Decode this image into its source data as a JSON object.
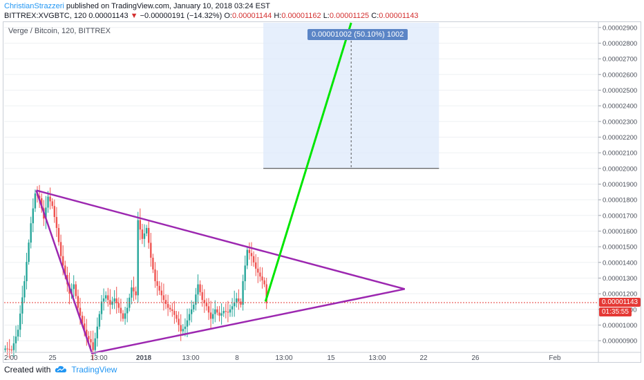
{
  "header": {
    "author": "ChristianStrazzeri",
    "published_text": " published on TradingView.com, January 10, 2018 03:24 EST",
    "symbol_interval": "BITTREX:XVGBTC, 120",
    "last_price": "0.00001143",
    "change_icon": "down-triangle-icon",
    "change": "−0.00000191 (−14.32%)",
    "open_label": "O:",
    "open": "0.00001144",
    "high_label": "H:",
    "high": "0.00001162",
    "low_label": "L:",
    "low": "0.00001125",
    "close_label": "C:",
    "close": "0.00001143"
  },
  "legend_title": "Verge / Bitcoin, 120, BITTREX",
  "measure_label": "0.00001002 (50.10%) 1002",
  "price_tags": {
    "current": "0.00001143",
    "countdown": "01:35:55"
  },
  "footer": {
    "created_with": "Created with",
    "brand": "TradingView",
    "logo_icon": "tradingview-cloud-icon"
  },
  "colors": {
    "up": "#26a69a",
    "down": "#ef5350",
    "triangle": "#9c27b0",
    "projection": "#00e600",
    "measure_box": "#ddeafb",
    "price_tag": "#e53935",
    "header_author": "#2196f3"
  },
  "chart_data": {
    "type": "candlestick",
    "title": "Verge / Bitcoin, 120, BITTREX",
    "x_tick_labels": [
      "2:00",
      "25",
      "13:00",
      "2018",
      "13:00",
      "8",
      "13:00",
      "15",
      "13:00",
      "22",
      "26",
      "Feb"
    ],
    "y_tick_labels": [
      "0.00000900",
      "0.00001000",
      "0.00001100",
      "0.00001200",
      "0.00001300",
      "0.00001400",
      "0.00001500",
      "0.00001600",
      "0.00001700",
      "0.00001800",
      "0.00001900",
      "0.00002000",
      "0.00002100",
      "0.00002200",
      "0.00002300",
      "0.00002400",
      "0.00002500",
      "0.00002600",
      "0.00002700",
      "0.00002800",
      "0.00002900"
    ],
    "ylim": [
      8.3e-06,
      2.93e-05
    ],
    "last_close": 1.143e-05,
    "price_path": [
      [
        0,
        8.5e-06
      ],
      [
        3,
        8.4e-06
      ],
      [
        6,
        9.7e-06
      ],
      [
        9,
        1.28e-05
      ],
      [
        12,
        1.65e-05
      ],
      [
        14,
        1.84e-05
      ],
      [
        16,
        1.81e-05
      ],
      [
        18,
        1.68e-05
      ],
      [
        20,
        1.82e-05
      ],
      [
        22,
        1.76e-05
      ],
      [
        24,
        1.62e-05
      ],
      [
        26,
        1.44e-05
      ],
      [
        28,
        1.32e-05
      ],
      [
        30,
        1.2e-05
      ],
      [
        32,
        1.26e-05
      ],
      [
        34,
        1.11e-05
      ],
      [
        36,
        1.01e-05
      ],
      [
        38,
        9.3e-06
      ],
      [
        40,
        8.9e-06
      ],
      [
        41,
        8.4e-06
      ],
      [
        43,
        9.9e-06
      ],
      [
        45,
        1.15e-05
      ],
      [
        47,
        1.19e-05
      ],
      [
        49,
        1.13e-05
      ],
      [
        51,
        1.17e-05
      ],
      [
        53,
        1.11e-05
      ],
      [
        55,
        1.04e-05
      ],
      [
        57,
        1.11e-05
      ],
      [
        59,
        1.24e-05
      ],
      [
        61,
        1.19e-05
      ],
      [
        62,
        1.67e-05
      ],
      [
        64,
        1.55e-05
      ],
      [
        66,
        1.62e-05
      ],
      [
        68,
        1.43e-05
      ],
      [
        70,
        1.28e-05
      ],
      [
        72,
        1.22e-05
      ],
      [
        74,
        1.16e-05
      ],
      [
        76,
        1.11e-05
      ],
      [
        78,
        1.09e-05
      ],
      [
        80,
        1.04e-05
      ],
      [
        82,
        9.6e-06
      ],
      [
        84,
        9.9e-06
      ],
      [
        86,
        1.07e-05
      ],
      [
        88,
        1.13e-05
      ],
      [
        90,
        1.26e-05
      ],
      [
        92,
        1.16e-05
      ],
      [
        94,
        1.12e-05
      ],
      [
        96,
        1.04e-05
      ],
      [
        98,
        1.1e-05
      ],
      [
        100,
        1.06e-05
      ],
      [
        102,
        1.09e-05
      ],
      [
        104,
        1.08e-05
      ],
      [
        106,
        1.12e-05
      ],
      [
        108,
        1.17e-05
      ],
      [
        110,
        1.13e-05
      ],
      [
        111,
        1.28e-05
      ],
      [
        113,
        1.48e-05
      ],
      [
        115,
        1.44e-05
      ],
      [
        117,
        1.36e-05
      ],
      [
        119,
        1.31e-05
      ],
      [
        121,
        1.26e-05
      ],
      [
        122,
        1.14e-05
      ]
    ],
    "triangle": [
      [
        15,
        1.86e-05
      ],
      [
        187,
        1.23e-05
      ],
      [
        41,
        8.2e-06
      ]
    ],
    "projection_line": [
      [
        122,
        1.15e-05
      ],
      [
        162,
        2.93e-05
      ]
    ],
    "measure_box": {
      "x": [
        121,
        203
      ],
      "y": [
        2e-05,
        2.93e-05
      ]
    }
  }
}
